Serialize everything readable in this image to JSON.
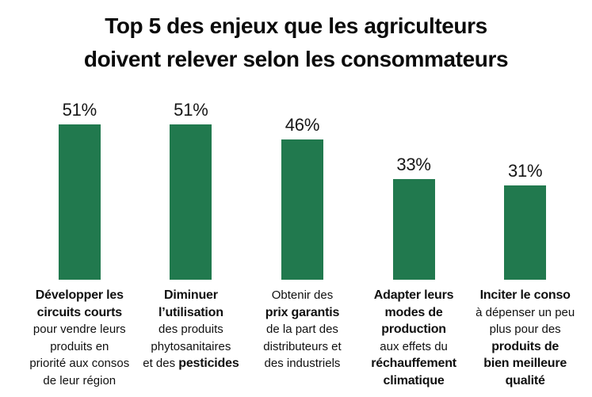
{
  "title": {
    "line1": "Top 5 des enjeux que les agriculteurs",
    "line2": "doivent relever selon les consommateurs"
  },
  "colors": {
    "bar_green": "#21794e",
    "title_text": "#0b0b0b",
    "body_text": "#101010"
  },
  "chart_data": {
    "type": "bar",
    "title": "Top 5 des enjeux que les agriculteurs doivent relever selon les consommateurs",
    "unit": "%",
    "ylim": [
      0,
      55
    ],
    "grid": false,
    "legend": "none",
    "bar_color": "#21794e",
    "categories": [
      "Développer les circuits courts pour vendre leurs produits en priorité aux consos de leur région",
      "Diminuer l’utilisation des produits phytosanitaires et des pesticides",
      "Obtenir des prix garantis de la part des distributeurs et des industriels",
      "Adapter leurs modes de production aux effets du réchauffement climatique",
      "Inciter le conso à dépenser un peu plus pour des produits de bien meilleure qualité"
    ],
    "values": [
      51,
      51,
      46,
      33,
      31
    ],
    "value_labels": [
      "51%",
      "51%",
      "46%",
      "33%",
      "31%"
    ],
    "items": [
      {
        "value": 51,
        "label": "51%",
        "caption_lines": [
          [
            {
              "text": "Développer les",
              "bold": true
            }
          ],
          [
            {
              "text": "circuits courts",
              "bold": true
            }
          ],
          [
            {
              "text": "pour vendre leurs",
              "bold": false
            }
          ],
          [
            {
              "text": "produits en",
              "bold": false
            }
          ],
          [
            {
              "text": "priorité aux consos",
              "bold": false
            }
          ],
          [
            {
              "text": "de leur région",
              "bold": false
            }
          ]
        ]
      },
      {
        "value": 51,
        "label": "51%",
        "caption_lines": [
          [
            {
              "text": "Diminuer",
              "bold": true
            }
          ],
          [
            {
              "text": "l’utilisation",
              "bold": true
            }
          ],
          [
            {
              "text": "des produits",
              "bold": false
            }
          ],
          [
            {
              "text": "phytosanitaires",
              "bold": false
            }
          ],
          [
            {
              "text": "et des ",
              "bold": false
            },
            {
              "text": "pesticides",
              "bold": true
            }
          ]
        ]
      },
      {
        "value": 46,
        "label": "46%",
        "caption_lines": [
          [
            {
              "text": "Obtenir des",
              "bold": false
            }
          ],
          [
            {
              "text": "prix garantis",
              "bold": true
            }
          ],
          [
            {
              "text": "de la part des",
              "bold": false
            }
          ],
          [
            {
              "text": "distributeurs et",
              "bold": false
            }
          ],
          [
            {
              "text": "des industriels",
              "bold": false
            }
          ]
        ]
      },
      {
        "value": 33,
        "label": "33%",
        "caption_lines": [
          [
            {
              "text": "Adapter leurs",
              "bold": true
            }
          ],
          [
            {
              "text": "modes de",
              "bold": true
            }
          ],
          [
            {
              "text": "production",
              "bold": true
            }
          ],
          [
            {
              "text": "aux effets du",
              "bold": false
            }
          ],
          [
            {
              "text": "réchauffement",
              "bold": true
            }
          ],
          [
            {
              "text": "climatique",
              "bold": true
            }
          ]
        ]
      },
      {
        "value": 31,
        "label": "31%",
        "caption_lines": [
          [
            {
              "text": "Inciter le conso",
              "bold": true
            }
          ],
          [
            {
              "text": "à dépenser un peu",
              "bold": false
            }
          ],
          [
            {
              "text": "plus pour des",
              "bold": false
            }
          ],
          [
            {
              "text": "produits de",
              "bold": true
            }
          ],
          [
            {
              "text": "bien meilleure",
              "bold": true
            }
          ],
          [
            {
              "text": "qualité",
              "bold": true
            }
          ]
        ]
      }
    ]
  }
}
